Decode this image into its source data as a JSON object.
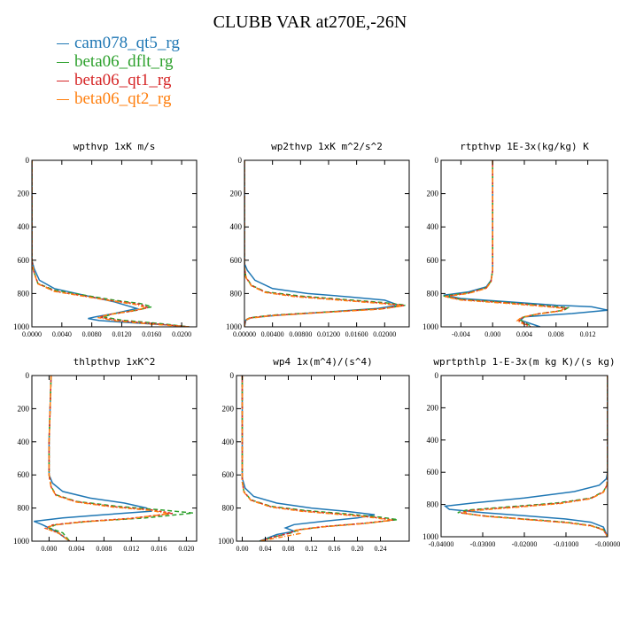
{
  "title": "CLUBB VAR at270E,-26N",
  "legend": [
    {
      "label": "cam078_qt5_rg",
      "color": "#1f77b4"
    },
    {
      "label": "beta06_dflt_rg",
      "color": "#2ca02c"
    },
    {
      "label": "beta06_qt1_rg",
      "color": "#d62728"
    },
    {
      "label": "beta06_qt2_rg",
      "color": "#ff7f0e"
    }
  ],
  "chart_data": [
    {
      "type": "line",
      "title": "wpthvp   1xK m/s",
      "xlim": [
        0,
        0.022
      ],
      "ylim": [
        1000,
        0
      ],
      "xticks": [
        "0.0000",
        "0.0040",
        "0.0080",
        "0.0120",
        "0.0160",
        "0.0200"
      ],
      "xtick_values": [
        0,
        0.004,
        0.008,
        0.012,
        0.016,
        0.02
      ],
      "yticks": [
        "0",
        "200",
        "400",
        "600",
        "800",
        "1000"
      ],
      "series": [
        {
          "name": "cam078_qt5_rg",
          "x": [
            0,
            0,
            0.0003,
            0.001,
            0.003,
            0.007,
            0.011,
            0.014,
            0.011,
            0.0085,
            0.0075,
            0.009,
            0.013,
            0.018,
            0.021
          ],
          "y": [
            0,
            600,
            650,
            720,
            770,
            810,
            850,
            890,
            920,
            940,
            950,
            962,
            975,
            988,
            1000
          ]
        },
        {
          "name": "beta06_dflt_rg",
          "x": [
            0,
            0,
            0.0002,
            0.0008,
            0.003,
            0.007,
            0.011,
            0.0145,
            0.016,
            0.014,
            0.011,
            0.0095,
            0.012,
            0.017,
            0.021
          ],
          "y": [
            0,
            600,
            660,
            740,
            780,
            810,
            840,
            860,
            880,
            900,
            920,
            940,
            960,
            980,
            1000
          ]
        },
        {
          "name": "beta06_qt1_rg",
          "x": [
            0,
            0,
            0.0002,
            0.0008,
            0.003,
            0.007,
            0.011,
            0.0145,
            0.0155,
            0.0135,
            0.0105,
            0.009,
            0.0115,
            0.0165,
            0.021
          ],
          "y": [
            0,
            600,
            660,
            740,
            785,
            815,
            845,
            865,
            885,
            905,
            925,
            942,
            962,
            982,
            1000
          ]
        },
        {
          "name": "beta06_qt2_rg",
          "x": [
            0,
            0,
            0.0002,
            0.0008,
            0.003,
            0.007,
            0.011,
            0.014,
            0.0152,
            0.013,
            0.0102,
            0.0088,
            0.0112,
            0.016,
            0.021
          ],
          "y": [
            0,
            600,
            662,
            742,
            787,
            817,
            847,
            867,
            887,
            907,
            927,
            944,
            964,
            984,
            1000
          ]
        }
      ]
    },
    {
      "type": "line",
      "title": "wp2thvp   1xK m^2/s^2",
      "xlim": [
        0,
        0.0235
      ],
      "ylim": [
        1000,
        0
      ],
      "xticks": [
        "0.00000",
        "0.00400",
        "0.00800",
        "0.01200",
        "0.01600",
        "0.02000"
      ],
      "xtick_values": [
        0,
        0.004,
        0.008,
        0.012,
        0.016,
        0.02
      ],
      "yticks": [
        "0",
        "200",
        "400",
        "600",
        "800",
        "1000"
      ],
      "series": [
        {
          "name": "cam078_qt5_rg",
          "x": [
            0,
            0,
            0.0004,
            0.0015,
            0.004,
            0.009,
            0.015,
            0.02,
            0.022,
            0.019,
            0.012,
            0.005,
            0.001,
            0.0002,
            0
          ],
          "y": [
            0,
            620,
            660,
            720,
            770,
            800,
            820,
            840,
            870,
            890,
            910,
            930,
            945,
            960,
            1000
          ]
        },
        {
          "name": "beta06_dflt_rg",
          "x": [
            0,
            0,
            0.0002,
            0.001,
            0.003,
            0.008,
            0.014,
            0.02,
            0.023,
            0.02,
            0.012,
            0.004,
            0.0008,
            0.0001,
            0
          ],
          "y": [
            0,
            640,
            700,
            750,
            790,
            815,
            835,
            855,
            870,
            890,
            910,
            930,
            945,
            960,
            1000
          ]
        },
        {
          "name": "beta06_qt1_rg",
          "x": [
            0,
            0,
            0.0002,
            0.001,
            0.003,
            0.0075,
            0.0135,
            0.0195,
            0.0228,
            0.0195,
            0.0115,
            0.0038,
            0.0007,
            0.0001,
            0
          ],
          "y": [
            0,
            640,
            702,
            752,
            792,
            817,
            837,
            857,
            872,
            892,
            912,
            932,
            947,
            962,
            1000
          ]
        },
        {
          "name": "beta06_qt2_rg",
          "x": [
            0,
            0,
            0.0002,
            0.001,
            0.003,
            0.0073,
            0.0133,
            0.0193,
            0.0226,
            0.0193,
            0.0113,
            0.0037,
            0.0007,
            0.0001,
            0
          ],
          "y": [
            0,
            640,
            704,
            754,
            794,
            819,
            839,
            859,
            874,
            894,
            914,
            934,
            949,
            964,
            1000
          ]
        }
      ]
    },
    {
      "type": "line",
      "title": "rtpthvp   1E-3x(kg/kg) K",
      "xlim": [
        -0.0065,
        0.0145
      ],
      "ylim": [
        1000,
        0
      ],
      "xticks": [
        "-0.004",
        "0.000",
        "0.004",
        "0.008",
        "0.012"
      ],
      "xtick_values": [
        -0.004,
        0,
        0.004,
        0.008,
        0.012
      ],
      "yticks": [
        "0",
        "200",
        "400",
        "600",
        "800",
        "1000"
      ],
      "series": [
        {
          "name": "cam078_qt5_rg",
          "x": [
            0,
            0,
            -0.0002,
            -0.0008,
            -0.003,
            -0.0062,
            -0.004,
            0.002,
            0.008,
            0.0125,
            0.0145,
            0.01,
            0.004,
            0.0035,
            0.006
          ],
          "y": [
            0,
            660,
            720,
            760,
            790,
            810,
            830,
            850,
            870,
            880,
            900,
            920,
            940,
            960,
            1000
          ]
        },
        {
          "name": "beta06_dflt_rg",
          "x": [
            0,
            0,
            -0.0002,
            -0.0008,
            -0.003,
            -0.0062,
            -0.004,
            0.002,
            0.006,
            0.0095,
            0.009,
            0.006,
            0.004,
            0.0035,
            0.005
          ],
          "y": [
            0,
            660,
            725,
            765,
            795,
            815,
            835,
            855,
            870,
            885,
            900,
            920,
            940,
            960,
            1000
          ]
        },
        {
          "name": "beta06_qt1_rg",
          "x": [
            0,
            0,
            -0.0002,
            -0.0008,
            -0.003,
            -0.006,
            -0.004,
            0.002,
            0.0058,
            0.0092,
            0.0088,
            0.0058,
            0.0038,
            0.0033,
            0.0048
          ],
          "y": [
            0,
            660,
            727,
            767,
            797,
            817,
            837,
            857,
            872,
            887,
            902,
            922,
            942,
            962,
            1000
          ]
        },
        {
          "name": "beta06_qt2_rg",
          "x": [
            0,
            0,
            -0.0002,
            -0.0008,
            -0.003,
            -0.006,
            -0.004,
            0.0018,
            0.0056,
            0.009,
            0.0086,
            0.0056,
            0.0036,
            0.0031,
            0.0046
          ],
          "y": [
            0,
            660,
            729,
            769,
            799,
            819,
            839,
            859,
            874,
            889,
            904,
            924,
            944,
            964,
            1000
          ]
        }
      ]
    },
    {
      "type": "line",
      "title": "thlpthvp   1xK^2",
      "xlim": [
        -0.0025,
        0.0215
      ],
      "ylim": [
        1000,
        0
      ],
      "xticks": [
        "0.000",
        "0.004",
        "0.008",
        "0.012",
        "0.016",
        "0.020"
      ],
      "xtick_values": [
        0,
        0.004,
        0.008,
        0.012,
        0.016,
        0.02
      ],
      "yticks": [
        "0",
        "200",
        "400",
        "600",
        "800",
        "1000"
      ],
      "series": [
        {
          "name": "cam078_qt5_rg",
          "x": [
            0.0003,
            0,
            0,
            0.0005,
            0.002,
            0.006,
            0.011,
            0.0142,
            0.0148,
            0.008,
            0.002,
            -0.0022,
            -0.001,
            0.001,
            0.003
          ],
          "y": [
            0,
            400,
            600,
            650,
            700,
            740,
            770,
            800,
            820,
            840,
            860,
            880,
            900,
            940,
            1000
          ]
        },
        {
          "name": "beta06_dflt_rg",
          "x": [
            0.0003,
            0,
            0,
            0.0003,
            0.001,
            0.004,
            0.01,
            0.016,
            0.021,
            0.014,
            0.006,
            0.001,
            0,
            0.002,
            0.003
          ],
          "y": [
            0,
            400,
            600,
            670,
            720,
            760,
            790,
            810,
            830,
            860,
            880,
            900,
            920,
            950,
            1000
          ]
        },
        {
          "name": "beta06_qt1_rg",
          "x": [
            0.0003,
            0,
            0,
            0.0003,
            0.001,
            0.004,
            0.0095,
            0.015,
            0.018,
            0.012,
            0.005,
            0.0005,
            -0.0005,
            0.0015,
            0.003
          ],
          "y": [
            0,
            400,
            600,
            672,
            722,
            762,
            792,
            812,
            832,
            862,
            882,
            902,
            922,
            952,
            1000
          ]
        },
        {
          "name": "beta06_qt2_rg",
          "x": [
            0.0003,
            0,
            0,
            0.0003,
            0.001,
            0.004,
            0.0093,
            0.0148,
            0.0175,
            0.0118,
            0.0048,
            0.0005,
            -0.0004,
            0.0015,
            0.003
          ],
          "y": [
            0,
            400,
            600,
            674,
            724,
            764,
            794,
            814,
            834,
            864,
            884,
            904,
            924,
            954,
            1000
          ]
        }
      ]
    },
    {
      "type": "line",
      "title": "wp4   1x(m^4)/(s^4)",
      "xlim": [
        -0.01,
        0.29
      ],
      "ylim": [
        1000,
        0
      ],
      "xticks": [
        "0.00",
        "0.04",
        "0.08",
        "0.12",
        "0.16",
        "0.20",
        "0.24"
      ],
      "xtick_values": [
        0,
        0.04,
        0.08,
        0.12,
        0.16,
        0.2,
        0.24
      ],
      "yticks": [
        "0",
        "200",
        "400",
        "600",
        "800",
        "1000"
      ],
      "series": [
        {
          "name": "cam078_qt5_rg",
          "x": [
            0,
            0,
            0.005,
            0.02,
            0.06,
            0.12,
            0.18,
            0.23,
            0.2,
            0.14,
            0.09,
            0.075,
            0.09,
            0.06,
            0.03
          ],
          "y": [
            0,
            620,
            680,
            730,
            770,
            800,
            820,
            840,
            860,
            880,
            900,
            920,
            940,
            960,
            1000
          ]
        },
        {
          "name": "beta06_dflt_rg",
          "x": [
            0,
            0,
            0.003,
            0.015,
            0.05,
            0.11,
            0.18,
            0.24,
            0.27,
            0.22,
            0.15,
            0.1,
            0.085,
            0.06,
            0.03
          ],
          "y": [
            0,
            640,
            700,
            750,
            790,
            815,
            835,
            855,
            870,
            890,
            910,
            930,
            950,
            970,
            1000
          ]
        },
        {
          "name": "beta06_qt1_rg",
          "x": [
            0,
            0,
            0.003,
            0.015,
            0.05,
            0.105,
            0.172,
            0.232,
            0.262,
            0.212,
            0.142,
            0.095,
            0.082,
            0.058,
            0.03
          ],
          "y": [
            0,
            640,
            702,
            752,
            792,
            817,
            837,
            857,
            872,
            892,
            912,
            932,
            952,
            972,
            1000
          ]
        },
        {
          "name": "beta06_qt2_rg",
          "x": [
            0,
            0,
            0.003,
            0.015,
            0.05,
            0.103,
            0.17,
            0.23,
            0.26,
            0.21,
            0.14,
            0.093,
            0.1,
            0.07,
            0.03
          ],
          "y": [
            0,
            640,
            704,
            754,
            794,
            819,
            839,
            859,
            874,
            894,
            914,
            934,
            954,
            974,
            1000
          ]
        }
      ]
    },
    {
      "type": "line",
      "title": "wprtpthlp   1-E-3x(m kg K)/(s kg)",
      "xlim": [
        -0.04,
        0
      ],
      "ylim": [
        1000,
        0
      ],
      "xticks": [
        "-0.04000",
        "-0.03000",
        "-0.02000",
        "-0.01000",
        "-0.00000"
      ],
      "xtick_values": [
        -0.04,
        -0.03,
        -0.02,
        -0.01,
        0
      ],
      "yticks": [
        "0",
        "200",
        "400",
        "600",
        "800",
        "1000"
      ],
      "series": [
        {
          "name": "cam078_qt5_rg",
          "x": [
            0,
            0,
            -0.0003,
            -0.002,
            -0.008,
            -0.02,
            -0.032,
            -0.039,
            -0.038,
            -0.03,
            -0.02,
            -0.01,
            -0.004,
            -0.001,
            0
          ],
          "y": [
            0,
            600,
            640,
            680,
            720,
            760,
            790,
            810,
            830,
            850,
            870,
            890,
            910,
            940,
            1000
          ]
        },
        {
          "name": "beta06_dflt_rg",
          "x": [
            0,
            0,
            -0.0002,
            -0.001,
            -0.004,
            -0.012,
            -0.024,
            -0.034,
            -0.036,
            -0.03,
            -0.02,
            -0.01,
            -0.004,
            -0.001,
            0
          ],
          "y": [
            0,
            620,
            680,
            720,
            760,
            790,
            815,
            835,
            850,
            870,
            890,
            910,
            930,
            955,
            1000
          ]
        },
        {
          "name": "beta06_qt1_rg",
          "x": [
            0,
            0,
            -0.0002,
            -0.001,
            -0.004,
            -0.0115,
            -0.0232,
            -0.0332,
            -0.0352,
            -0.0294,
            -0.0196,
            -0.0098,
            -0.0039,
            -0.001,
            0
          ],
          "y": [
            0,
            620,
            682,
            722,
            762,
            792,
            817,
            837,
            852,
            872,
            892,
            912,
            932,
            957,
            1000
          ]
        },
        {
          "name": "beta06_qt2_rg",
          "x": [
            0,
            0,
            -0.0002,
            -0.001,
            -0.004,
            -0.0113,
            -0.0228,
            -0.0328,
            -0.0348,
            -0.029,
            -0.0193,
            -0.0096,
            -0.0038,
            -0.001,
            0
          ],
          "y": [
            0,
            620,
            684,
            724,
            764,
            794,
            819,
            839,
            854,
            874,
            894,
            914,
            934,
            959,
            1000
          ]
        }
      ]
    }
  ]
}
